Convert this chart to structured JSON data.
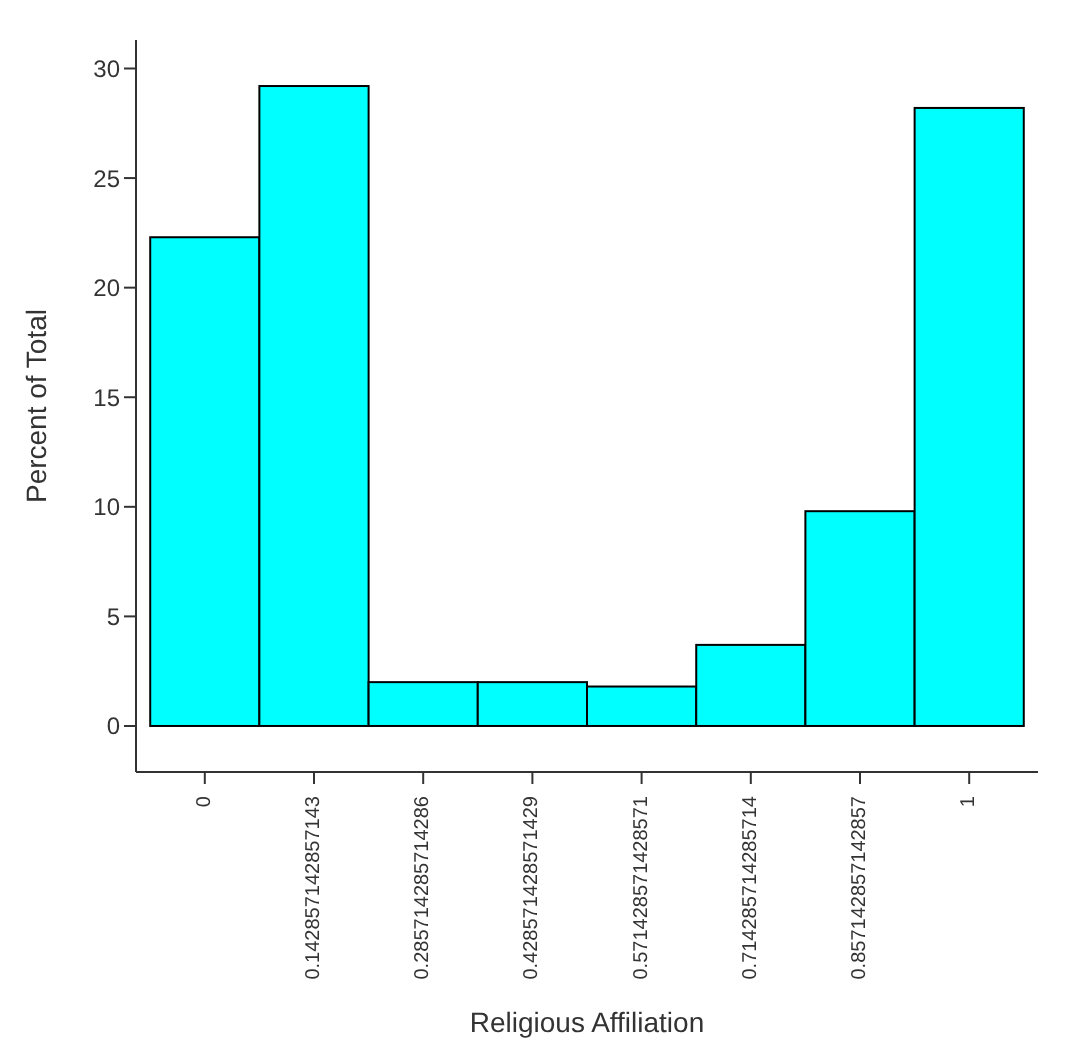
{
  "chart_data": {
    "type": "histogram",
    "xlabel": "Religious Affiliation",
    "ylabel": "Percent of Total",
    "bins": [
      -0.0714,
      0.0714,
      0.2143,
      0.3571,
      0.5,
      0.6429,
      0.7857,
      0.9286,
      1.0714
    ],
    "values": [
      22.3,
      29.2,
      2.0,
      2.0,
      1.8,
      3.7,
      9.8,
      28.2
    ],
    "color": "#00ffff",
    "xlim": [
      -0.09,
      1.09
    ],
    "xticks": [
      0,
      {
        "value": 0.142857142857143,
        "label": "0.142857142857143"
      },
      {
        "value": 0.285714285714286,
        "label": "0.285714285714286"
      },
      {
        "value": 0.428571428571429,
        "label": "0.428571428571429"
      },
      {
        "value": 0.571428571428571,
        "label": "0.571428571428571"
      },
      {
        "value": 0.714285714285714,
        "label": "0.714285714285714"
      },
      {
        "value": 0.857142857142857,
        "label": "0.857142857142857"
      },
      1
    ],
    "ylim": [
      -2.1,
      31.3
    ],
    "yticks": [
      0,
      5,
      10,
      15,
      20,
      25,
      30
    ]
  }
}
